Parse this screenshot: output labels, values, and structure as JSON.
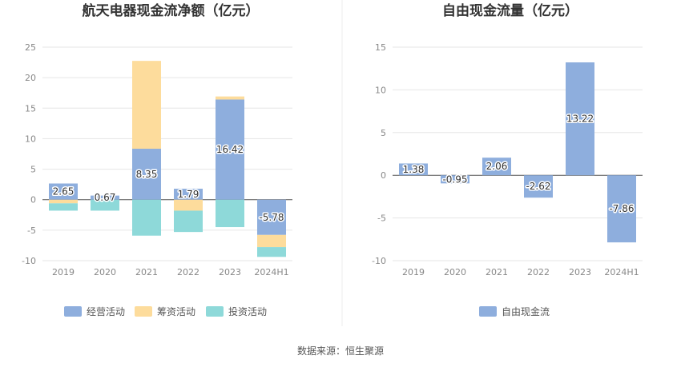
{
  "source_label": "数据来源：恒生聚源",
  "chart_data": [
    {
      "type": "bar",
      "stacked": true,
      "title": "航天电器现金流净额（亿元）",
      "categories": [
        "2019",
        "2020",
        "2021",
        "2022",
        "2023",
        "2024H1"
      ],
      "ylim": [
        -10,
        25
      ],
      "yticks": [
        25,
        20,
        15,
        10,
        5,
        0,
        -5,
        -10
      ],
      "grid": true,
      "legend_position": "bottom",
      "series": [
        {
          "name": "经营活动",
          "color": "#8eaedd",
          "values": [
            2.65,
            0.67,
            8.35,
            1.79,
            16.42,
            -5.78
          ],
          "labels": [
            "2.65",
            "0.67",
            "8.35",
            "1.79",
            "16.42",
            "-5.78"
          ]
        },
        {
          "name": "筹资活动",
          "color": "#fddc9c",
          "values": [
            -0.6,
            0.0,
            14.4,
            -1.8,
            0.5,
            -2.0
          ]
        },
        {
          "name": "投资活动",
          "color": "#8ed9d9",
          "values": [
            -1.2,
            -1.8,
            -5.9,
            -3.5,
            -4.5,
            -1.6
          ]
        }
      ]
    },
    {
      "type": "bar",
      "title": "自由现金流量（亿元）",
      "categories": [
        "2019",
        "2020",
        "2021",
        "2022",
        "2023",
        "2024H1"
      ],
      "ylim": [
        -10,
        15
      ],
      "yticks": [
        15,
        10,
        5,
        0,
        -5,
        -10
      ],
      "grid": true,
      "legend_position": "bottom",
      "series": [
        {
          "name": "自由现金流",
          "color": "#8eaedd",
          "values": [
            1.38,
            -0.95,
            2.06,
            -2.62,
            13.22,
            -7.86
          ],
          "labels": [
            "1.38",
            "-0.95",
            "2.06",
            "-2.62",
            "13.22",
            "-7.86"
          ]
        }
      ]
    }
  ]
}
